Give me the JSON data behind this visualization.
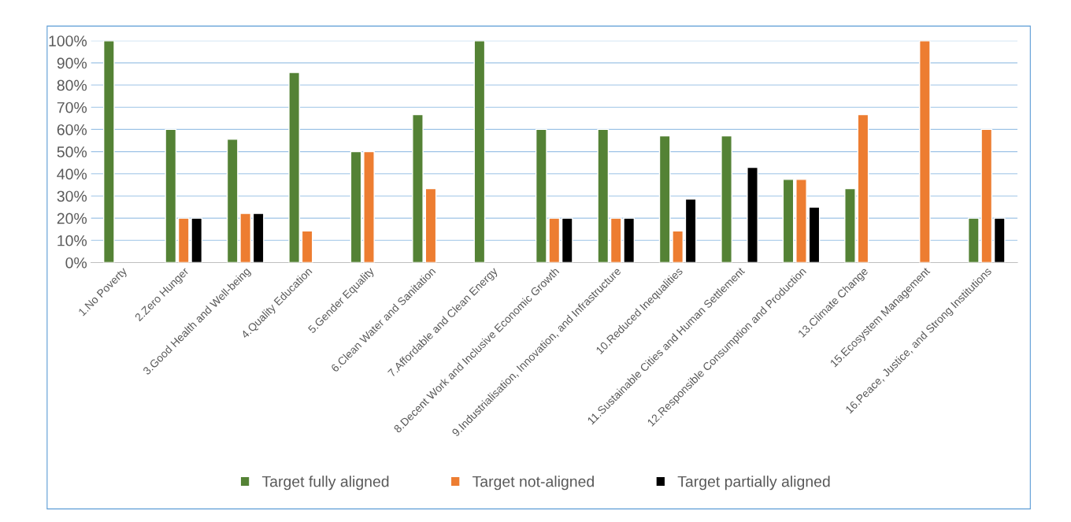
{
  "chart_data": {
    "type": "bar",
    "categories": [
      "1.No Poverty",
      "2.Zero Hunger",
      "3.Good Health and Well-being",
      "4.Quality Education",
      "5.Gender Equality",
      "6.Clean Water and Sanitation",
      "7.Affordable and Clean Energy",
      "8.Decent Work and Inclusive Economic Growth",
      "9.Industrialisation, Innovation, and Infrastructure",
      "10.Reduced Inequalities",
      "11.Sustainable Cities and Human Settlement",
      "12.Responsible Consumption and Production",
      "13.Climate Change",
      "15.Ecosystem Management",
      "16.Peace, Justice, and Strong Institutions"
    ],
    "series": [
      {
        "name": "Target fully aligned",
        "color": "#548235",
        "values": [
          100,
          60,
          55.6,
          85.7,
          50,
          66.7,
          100,
          60,
          60,
          57.1,
          57.1,
          37.5,
          33.3,
          null,
          20
        ]
      },
      {
        "name": "Target not-aligned",
        "color": "#ed7d31",
        "values": [
          null,
          20,
          22.2,
          14.3,
          50,
          33.3,
          null,
          20,
          20,
          14.3,
          null,
          37.5,
          66.7,
          100,
          60
        ]
      },
      {
        "name": "Target partially aligned",
        "color": "#000000",
        "values": [
          null,
          20,
          22.2,
          null,
          null,
          null,
          null,
          20,
          20,
          28.6,
          42.9,
          25,
          null,
          null,
          20
        ]
      }
    ],
    "ylim": [
      0,
      100
    ],
    "yticks": [
      {
        "value": 0,
        "label": "0%"
      },
      {
        "value": 10,
        "label": "10%"
      },
      {
        "value": 20,
        "label": "20%"
      },
      {
        "value": 30,
        "label": "30%"
      },
      {
        "value": 40,
        "label": "40%"
      },
      {
        "value": 50,
        "label": "50%"
      },
      {
        "value": 60,
        "label": "60%"
      },
      {
        "value": 70,
        "label": "70%"
      },
      {
        "value": 80,
        "label": "80%"
      },
      {
        "value": 90,
        "label": "90%"
      },
      {
        "value": 100,
        "label": "100%"
      }
    ],
    "grid": "y",
    "legend": "bottom"
  }
}
